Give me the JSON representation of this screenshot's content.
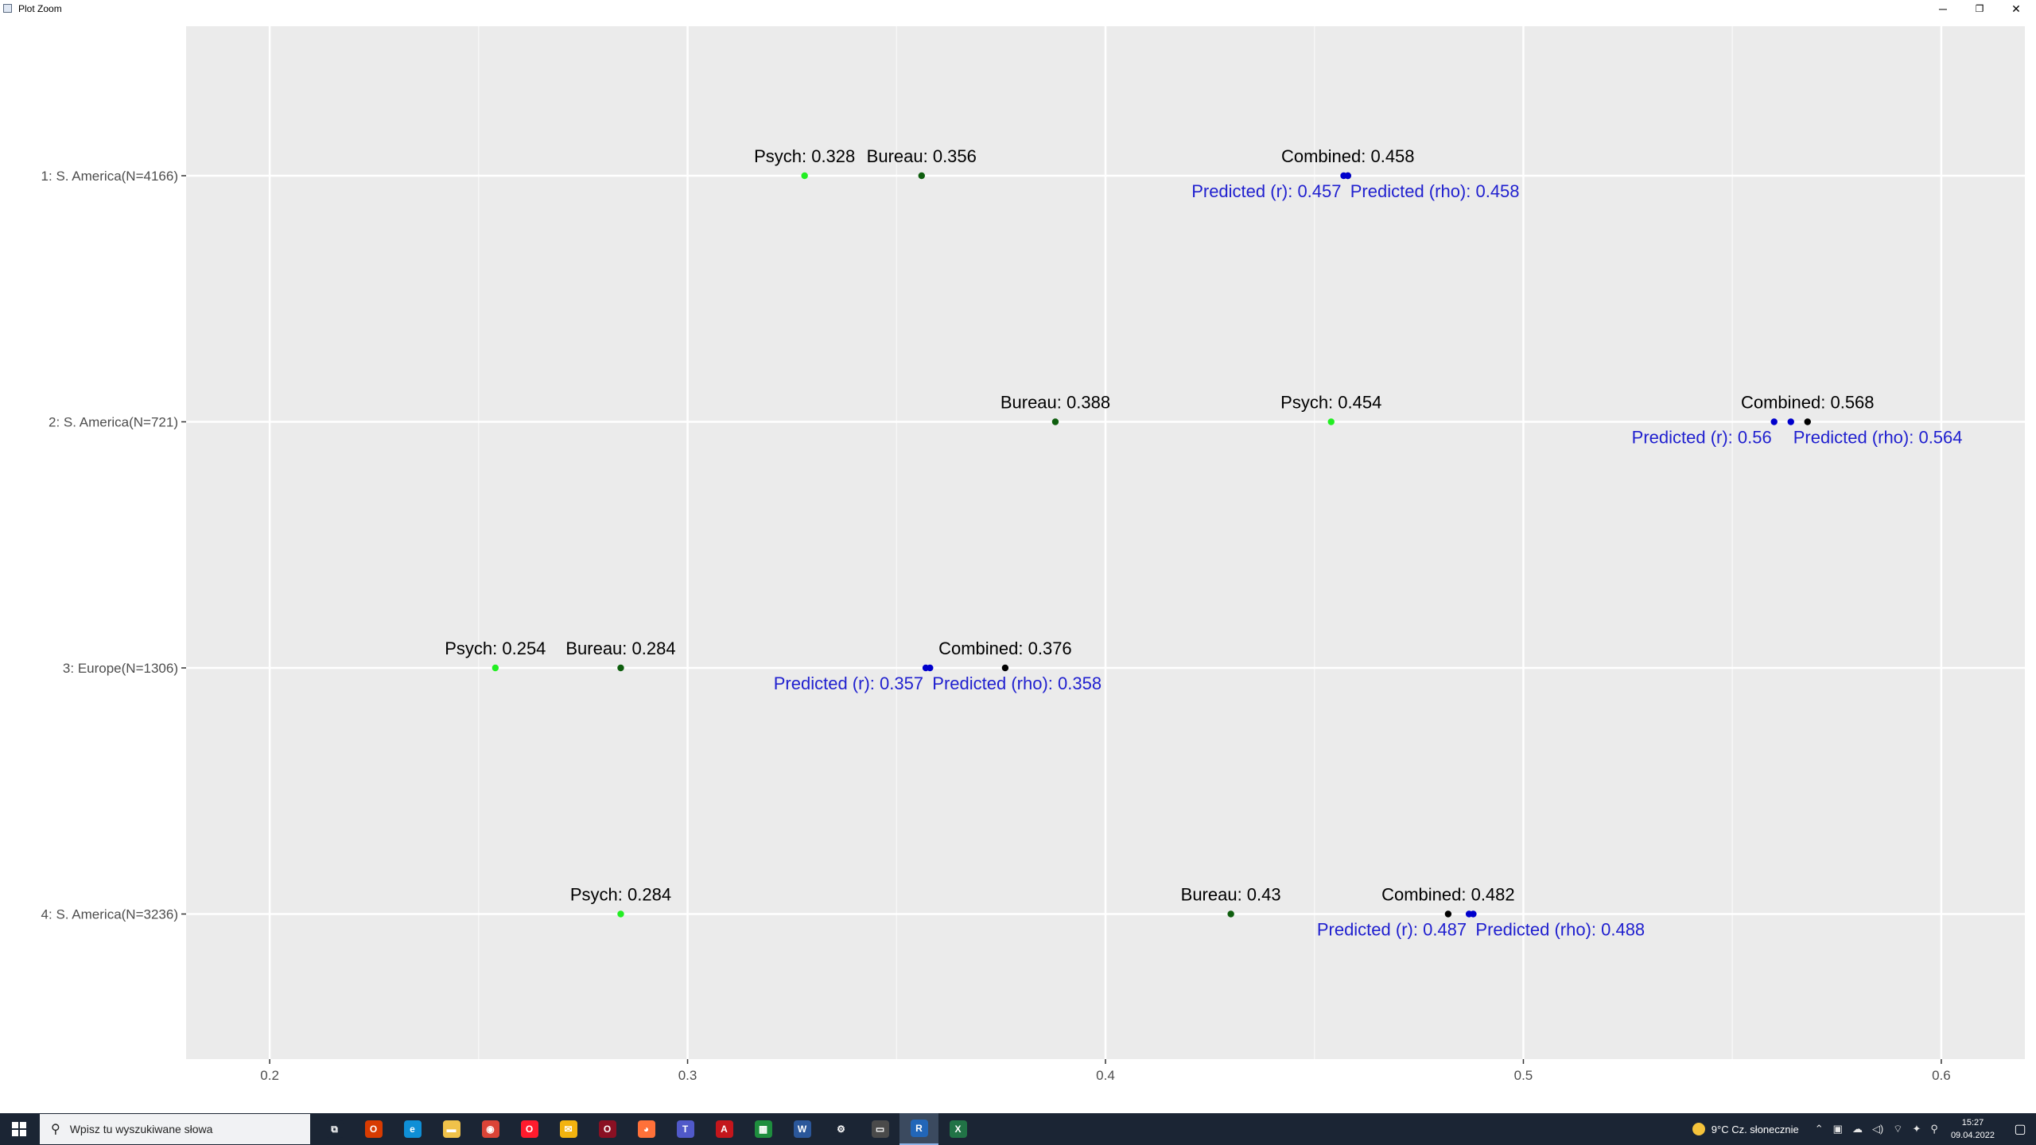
{
  "window": {
    "title": "Plot Zoom",
    "minimize": "─",
    "restore": "❐",
    "close": "✕"
  },
  "chart_data": {
    "type": "scatter",
    "xlim": [
      0.18,
      0.62
    ],
    "x_ticks": [
      0.2,
      0.3,
      0.4,
      0.5,
      0.6
    ],
    "x_tick_labels": [
      "0.2",
      "0.3",
      "0.4",
      "0.5",
      "0.6"
    ],
    "categories": [
      "1: S. America(N=4166)",
      "2: S. America(N=721)",
      "3: Europe(N=1306)",
      "4: S. America(N=3236)"
    ],
    "grid": true,
    "legend": "none",
    "background": "#ebebeb",
    "colors": {
      "psych": "#22ee22",
      "bureau": "#0e5e0e",
      "combined": "#000000",
      "predicted": "#0000cc",
      "predicted_label": "#1f1fcf"
    },
    "series": [
      {
        "name": "Psych",
        "values": [
          0.328,
          0.454,
          0.254,
          0.284
        ]
      },
      {
        "name": "Bureau",
        "values": [
          0.356,
          0.388,
          0.284,
          0.43
        ]
      },
      {
        "name": "Combined",
        "values": [
          0.458,
          0.568,
          0.376,
          0.482
        ]
      },
      {
        "name": "Predicted (r)",
        "values": [
          0.457,
          0.56,
          0.357,
          0.487
        ]
      },
      {
        "name": "Predicted (rho)",
        "values": [
          0.458,
          0.564,
          0.358,
          0.488
        ]
      }
    ],
    "annotations": [
      {
        "row": 0,
        "series": "Psych",
        "text": "Psych: 0.328"
      },
      {
        "row": 0,
        "series": "Bureau",
        "text": "Bureau: 0.356"
      },
      {
        "row": 0,
        "series": "Combined",
        "text": "Combined: 0.458"
      },
      {
        "row": 0,
        "series": "Predicted (r)",
        "text": "Predicted (r): 0.457"
      },
      {
        "row": 0,
        "series": "Predicted (rho)",
        "text": "Predicted (rho): 0.458"
      },
      {
        "row": 1,
        "series": "Bureau",
        "text": "Bureau: 0.388"
      },
      {
        "row": 1,
        "series": "Psych",
        "text": "Psych: 0.454"
      },
      {
        "row": 1,
        "series": "Combined",
        "text": "Combined: 0.568"
      },
      {
        "row": 1,
        "series": "Predicted (r)",
        "text": "Predicted (r): 0.56"
      },
      {
        "row": 1,
        "series": "Predicted (rho)",
        "text": "Predicted (rho): 0.564"
      },
      {
        "row": 2,
        "series": "Psych",
        "text": "Psych: 0.254"
      },
      {
        "row": 2,
        "series": "Bureau",
        "text": "Bureau: 0.284"
      },
      {
        "row": 2,
        "series": "Combined",
        "text": "Combined: 0.376"
      },
      {
        "row": 2,
        "series": "Predicted (r)",
        "text": "Predicted (r): 0.357"
      },
      {
        "row": 2,
        "series": "Predicted (rho)",
        "text": "Predicted (rho): 0.358"
      },
      {
        "row": 3,
        "series": "Psych",
        "text": "Psych: 0.284"
      },
      {
        "row": 3,
        "series": "Bureau",
        "text": "Bureau: 0.43"
      },
      {
        "row": 3,
        "series": "Combined",
        "text": "Combined: 0.482"
      },
      {
        "row": 3,
        "series": "Predicted (r)",
        "text": "Predicted (r): 0.487"
      },
      {
        "row": 3,
        "series": "Predicted (rho)",
        "text": "Predicted (rho): 0.488"
      }
    ]
  },
  "taskbar": {
    "search_placeholder": "Wpisz tu wyszukiwane słowa",
    "apps": [
      {
        "name": "task-view",
        "glyph": "⧉",
        "color": "#1b2534"
      },
      {
        "name": "office",
        "glyph": "O",
        "color": "#d83b01"
      },
      {
        "name": "edge",
        "glyph": "e",
        "color": "#0f8fd6"
      },
      {
        "name": "file-explorer",
        "glyph": "▬",
        "color": "#f0c24a"
      },
      {
        "name": "chrome",
        "glyph": "◉",
        "color": "#db4437"
      },
      {
        "name": "opera",
        "glyph": "O",
        "color": "#ff1b2d"
      },
      {
        "name": "outlook",
        "glyph": "✉",
        "color": "#f2b30f"
      },
      {
        "name": "opera-gx",
        "glyph": "O",
        "color": "#8a1023"
      },
      {
        "name": "firefox",
        "glyph": "◕",
        "color": "#ff7139"
      },
      {
        "name": "teams",
        "glyph": "T",
        "color": "#5059c9"
      },
      {
        "name": "acrobat",
        "glyph": "A",
        "color": "#c4161c"
      },
      {
        "name": "sheets",
        "glyph": "▦",
        "color": "#1e8e3e"
      },
      {
        "name": "word",
        "glyph": "W",
        "color": "#2b579a"
      },
      {
        "name": "settings",
        "glyph": "⚙",
        "color": "#1b2534"
      },
      {
        "name": "terminal",
        "glyph": "▭",
        "color": "#4a4a4a"
      },
      {
        "name": "r-app",
        "glyph": "R",
        "color": "#2266b8",
        "active": true
      },
      {
        "name": "excel",
        "glyph": "X",
        "color": "#217346"
      }
    ],
    "weather": "9°C  Cz. słonecznie",
    "tray_icons": [
      "⌃",
      "▣",
      "☁",
      "◁)",
      "⌔",
      "✦",
      "⚲"
    ],
    "time": "15:27",
    "date": "09.04.2022",
    "notification_glyph": "▢"
  }
}
